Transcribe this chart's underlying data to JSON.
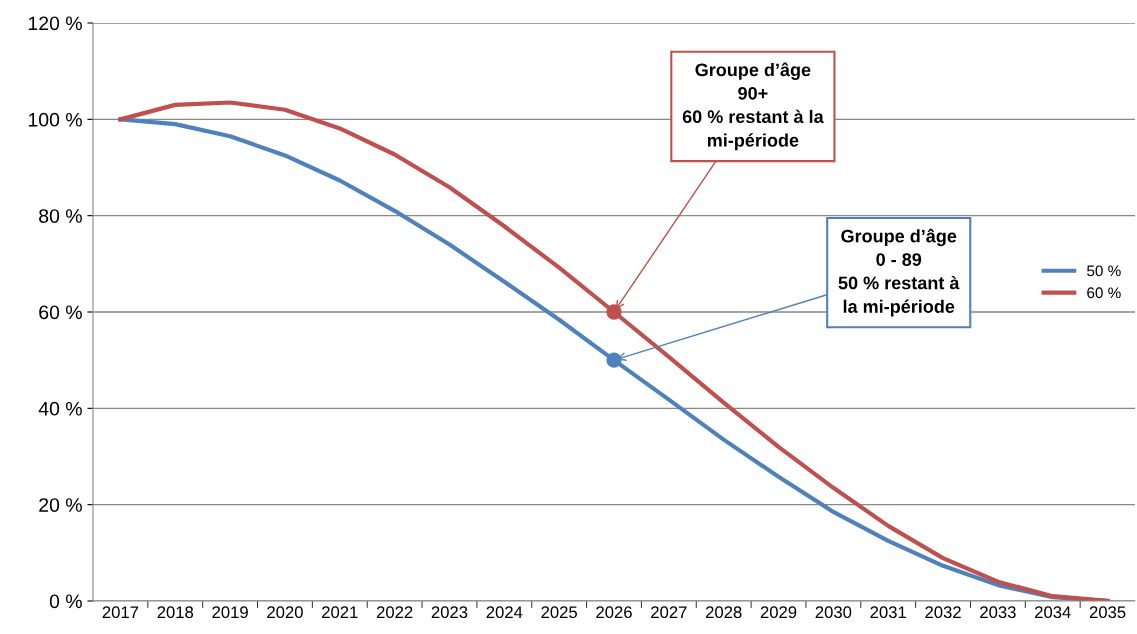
{
  "chart_data": {
    "type": "line",
    "categories": [
      "2017",
      "2018",
      "2019",
      "2020",
      "2021",
      "2022",
      "2023",
      "2024",
      "2025",
      "2026",
      "2027",
      "2028",
      "2029",
      "2030",
      "2031",
      "2032",
      "2033",
      "2034",
      "2035"
    ],
    "series": [
      {
        "name": "50 %",
        "color": "#4f81bd",
        "values": [
          100,
          99,
          96.5,
          92.5,
          87.3,
          81,
          74,
          66.3,
          58.4,
          50,
          41.8,
          33.5,
          25.8,
          18.5,
          12.5,
          7.3,
          3.3,
          0.8,
          0
        ]
      },
      {
        "name": "60 %",
        "color": "#c0504d",
        "values": [
          100,
          103,
          103.5,
          102,
          98.1,
          92.7,
          85.9,
          77.8,
          69.2,
          60,
          50.7,
          41.2,
          32,
          23.5,
          15.6,
          8.9,
          4,
          1,
          0
        ]
      }
    ],
    "ylim": [
      0,
      120
    ],
    "yticks": [
      {
        "value": 0,
        "label": "0 %"
      },
      {
        "value": 20,
        "label": "20 %"
      },
      {
        "value": 40,
        "label": "40 %"
      },
      {
        "value": 60,
        "label": "60 %"
      },
      {
        "value": 80,
        "label": "80 %"
      },
      {
        "value": 100,
        "label": "100 %"
      },
      {
        "value": 120,
        "label": "120 %"
      }
    ],
    "grid": "y",
    "legend": "right",
    "line_style": "solid",
    "annotations": [
      {
        "text": "Groupe d’âge\n0 - 89\n50 % restant à\nla mi-période",
        "x": "2026",
        "y": 50
      },
      {
        "text": "Groupe d’âge\n90+\n60 % restant à la\nmi-période",
        "x": "2026",
        "y": 60
      }
    ]
  }
}
